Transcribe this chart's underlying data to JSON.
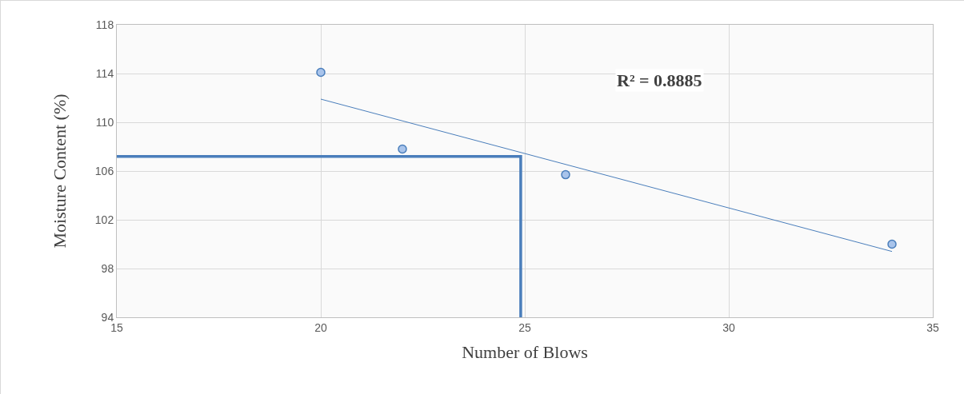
{
  "chart_data": {
    "type": "scatter",
    "xlabel": "Number of Blows",
    "ylabel": "Moisture Content (%)",
    "annotations": [
      "R² = 0.8885"
    ],
    "xlim": [
      15,
      35
    ],
    "xticks": [
      15,
      20,
      25,
      30,
      35
    ],
    "ylim": [
      94,
      118
    ],
    "yticks": [
      94,
      98,
      102,
      106,
      110,
      114,
      118
    ],
    "grid": true,
    "series": [
      {
        "color": "#4a7ebb",
        "marker": "circle",
        "x": [
          20,
          22,
          26,
          34
        ],
        "values": [
          114.1,
          107.8,
          105.7,
          100.0
        ]
      },
      {
        "type": "line",
        "color": "#4a7ebb",
        "marker": "none",
        "line_style": "solid",
        "x": [
          20,
          34
        ],
        "values": [
          111.9,
          99.4
        ]
      },
      {
        "type": "line",
        "color": "#4a7ebb",
        "marker": "none",
        "line_style": "solid",
        "x": [
          15,
          24.9,
          24.9
        ],
        "values": [
          107.2,
          107.2,
          94
        ]
      }
    ]
  }
}
